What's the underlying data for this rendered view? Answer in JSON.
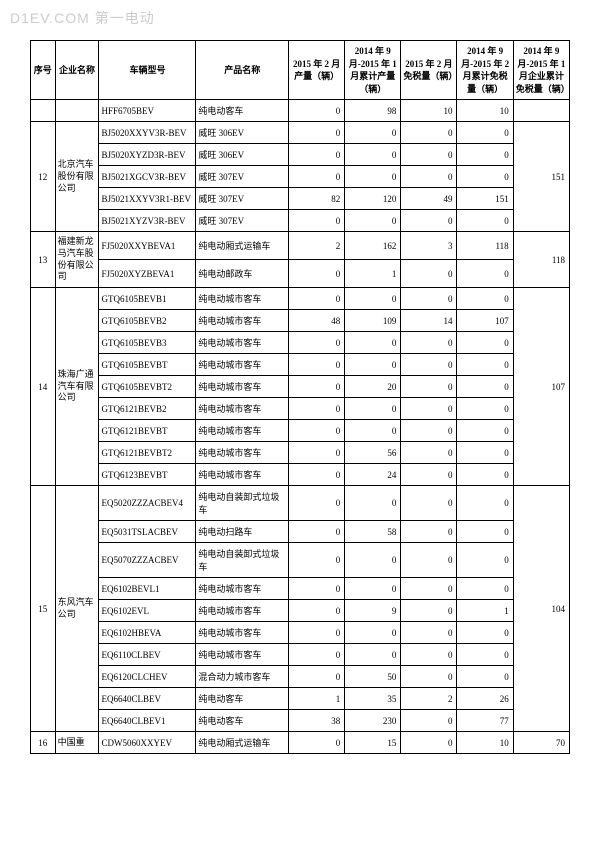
{
  "watermark": "D1EV.COM 第一电动",
  "headers": {
    "seq": "序号",
    "company": "企业名称",
    "model": "车辆型号",
    "product": "产品名称",
    "col1": "2015 年 2 月产量（辆）",
    "col2": "2014 年 9 月-2015 年 1 月累计产量（辆）",
    "col3": "2015 年 2 月免税量（辆）",
    "col4": "2014 年 9 月-2015 年 2 月累计免税量（辆）",
    "col5": "2014 年 9 月-2015 年 1 月企业累计免税量（辆）"
  },
  "groups": [
    {
      "seq": "",
      "company": "",
      "total": "",
      "rows": [
        {
          "model": "HFF6705BEV",
          "product": "纯电动客车",
          "c1": "0",
          "c2": "98",
          "c3": "10",
          "c4": "10"
        }
      ]
    },
    {
      "seq": "12",
      "company": "北京汽车股份有限公司",
      "total": "151",
      "rows": [
        {
          "model": "BJ5020XXYV3R-BEV",
          "product": "威旺 306EV",
          "c1": "0",
          "c2": "0",
          "c3": "0",
          "c4": "0"
        },
        {
          "model": "BJ5020XYZD3R-BEV",
          "product": "威旺 306EV",
          "c1": "0",
          "c2": "0",
          "c3": "0",
          "c4": "0"
        },
        {
          "model": "BJ5021XGCV3R-BEV",
          "product": "威旺 307EV",
          "c1": "0",
          "c2": "0",
          "c3": "0",
          "c4": "0"
        },
        {
          "model": "BJ5021XXYV3R1-BEV",
          "product": "威旺 307EV",
          "c1": "82",
          "c2": "120",
          "c3": "49",
          "c4": "151"
        },
        {
          "model": "BJ5021XYZV3R-BEV",
          "product": "威旺 307EV",
          "c1": "0",
          "c2": "0",
          "c3": "0",
          "c4": "0"
        }
      ]
    },
    {
      "seq": "13",
      "company": "福建新龙马汽车股份有限公司",
      "total": "118",
      "rows": [
        {
          "model": "FJ5020XXYBEVA1",
          "product": "纯电动厢式运输车",
          "c1": "2",
          "c2": "162",
          "c3": "3",
          "c4": "118"
        },
        {
          "model": "FJ5020XYZBEVA1",
          "product": "纯电动邮政车",
          "c1": "0",
          "c2": "1",
          "c3": "0",
          "c4": "0"
        }
      ]
    },
    {
      "seq": "14",
      "company": "珠海广通汽车有限公司",
      "total": "107",
      "rows": [
        {
          "model": "GTQ6105BEVB1",
          "product": "纯电动城市客车",
          "c1": "0",
          "c2": "0",
          "c3": "0",
          "c4": "0"
        },
        {
          "model": "GTQ6105BEVB2",
          "product": "纯电动城市客车",
          "c1": "48",
          "c2": "109",
          "c3": "14",
          "c4": "107"
        },
        {
          "model": "GTQ6105BEVB3",
          "product": "纯电动城市客车",
          "c1": "0",
          "c2": "0",
          "c3": "0",
          "c4": "0"
        },
        {
          "model": "GTQ6105BEVBT",
          "product": "纯电动城市客车",
          "c1": "0",
          "c2": "0",
          "c3": "0",
          "c4": "0"
        },
        {
          "model": "GTQ6105BEVBT2",
          "product": "纯电动城市客车",
          "c1": "0",
          "c2": "20",
          "c3": "0",
          "c4": "0"
        },
        {
          "model": "GTQ6121BEVB2",
          "product": "纯电动城市客车",
          "c1": "0",
          "c2": "0",
          "c3": "0",
          "c4": "0"
        },
        {
          "model": "GTQ6121BEVBT",
          "product": "纯电动城市客车",
          "c1": "0",
          "c2": "0",
          "c3": "0",
          "c4": "0"
        },
        {
          "model": "GTQ6121BEVBT2",
          "product": "纯电动城市客车",
          "c1": "0",
          "c2": "56",
          "c3": "0",
          "c4": "0"
        },
        {
          "model": "GTQ6123BEVBT",
          "product": "纯电动城市客车",
          "c1": "0",
          "c2": "24",
          "c3": "0",
          "c4": "0"
        }
      ]
    },
    {
      "seq": "15",
      "company": "东风汽车公司",
      "total": "104",
      "rows": [
        {
          "model": "EQ5020ZZZACBEV4",
          "product": "纯电动自装卸式垃圾车",
          "c1": "0",
          "c2": "0",
          "c3": "0",
          "c4": "0"
        },
        {
          "model": "EQ5031TSLACBEV",
          "product": "纯电动扫路车",
          "c1": "0",
          "c2": "58",
          "c3": "0",
          "c4": "0"
        },
        {
          "model": "EQ5070ZZZACBEV",
          "product": "纯电动自装卸式垃圾车",
          "c1": "0",
          "c2": "0",
          "c3": "0",
          "c4": "0"
        },
        {
          "model": "EQ6102BEVL1",
          "product": "纯电动城市客车",
          "c1": "0",
          "c2": "0",
          "c3": "0",
          "c4": "0"
        },
        {
          "model": "EQ6102EVL",
          "product": "纯电动城市客车",
          "c1": "0",
          "c2": "9",
          "c3": "0",
          "c4": "1"
        },
        {
          "model": "EQ6102HBEVA",
          "product": "纯电动城市客车",
          "c1": "0",
          "c2": "0",
          "c3": "0",
          "c4": "0"
        },
        {
          "model": "EQ6110CLBEV",
          "product": "纯电动城市客车",
          "c1": "0",
          "c2": "0",
          "c3": "0",
          "c4": "0"
        },
        {
          "model": "EQ6120CLCHEV",
          "product": "混合动力城市客车",
          "c1": "0",
          "c2": "50",
          "c3": "0",
          "c4": "0"
        },
        {
          "model": "EQ6640CLBEV",
          "product": "纯电动客车",
          "c1": "1",
          "c2": "35",
          "c3": "2",
          "c4": "26"
        },
        {
          "model": "EQ6640CLBEV1",
          "product": "纯电动客车",
          "c1": "38",
          "c2": "230",
          "c3": "0",
          "c4": "77"
        }
      ]
    },
    {
      "seq": "16",
      "company": "中国重",
      "total": "70",
      "rows": [
        {
          "model": "CDW5060XXYEV",
          "product": "纯电动厢式运输车",
          "c1": "0",
          "c2": "15",
          "c3": "0",
          "c4": "10"
        }
      ]
    }
  ]
}
